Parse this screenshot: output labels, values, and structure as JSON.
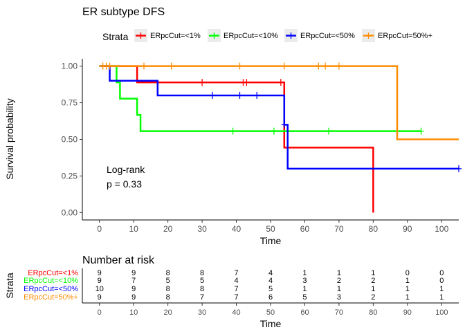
{
  "chart_data": [
    {
      "type": "line",
      "title": "ER subtype DFS",
      "xlabel": "Time",
      "ylabel": "Survival probability",
      "xlim": [
        -5,
        105
      ],
      "ylim": [
        -0.05,
        1.05
      ],
      "x_ticks": [
        0,
        10,
        20,
        30,
        40,
        50,
        60,
        70,
        80,
        90,
        100
      ],
      "y_ticks": [
        0.0,
        0.25,
        0.5,
        0.75,
        1.0
      ],
      "y_tick_labels": [
        "0.00",
        "0.25",
        "0.50",
        "0.75",
        "1.00"
      ],
      "grid": false,
      "legend_title": "Strata",
      "legend_position": "top",
      "annotation": {
        "line1": "Log-rank",
        "line2": "p = 0.33"
      },
      "series": [
        {
          "name": "ERpcCut=<1%",
          "color": "#FF0000",
          "steps": [
            [
              0,
              1.0
            ],
            [
              11,
              0.889
            ],
            [
              54,
              0.444
            ],
            [
              80,
              0.0
            ]
          ],
          "end_x": 80,
          "censors": [
            [
              30,
              0.889
            ],
            [
              42,
              0.889
            ],
            [
              43,
              0.889
            ],
            [
              53,
              0.889
            ]
          ]
        },
        {
          "name": "ERpcCut=<10%",
          "color": "#00FF00",
          "steps": [
            [
              0,
              1.0
            ],
            [
              5,
              0.889
            ],
            [
              6,
              0.778
            ],
            [
              11,
              0.667
            ],
            [
              12,
              0.556
            ]
          ],
          "end_x": 94,
          "censors": [
            [
              39,
              0.556
            ],
            [
              51,
              0.556
            ],
            [
              67,
              0.556
            ],
            [
              87,
              0.556
            ],
            [
              94,
              0.556
            ]
          ]
        },
        {
          "name": "ERpcCut=<50%",
          "color": "#0000FF",
          "steps": [
            [
              0,
              1.0
            ],
            [
              3,
              0.9
            ],
            [
              17,
              0.8
            ],
            [
              54,
              0.6
            ],
            [
              55,
              0.3
            ]
          ],
          "end_x": 105,
          "censors": [
            [
              33,
              0.8
            ],
            [
              41,
              0.8
            ],
            [
              46,
              0.8
            ],
            [
              54,
              0.6
            ],
            [
              105,
              0.3
            ]
          ]
        },
        {
          "name": "ERpcCut=50%+",
          "color": "#FF8C00",
          "steps": [
            [
              0,
              1.0
            ],
            [
              87,
              0.5
            ]
          ],
          "end_x": 105,
          "censors": [
            [
              1,
              1.0
            ],
            [
              2,
              1.0
            ],
            [
              3,
              1.0
            ],
            [
              13,
              1.0
            ],
            [
              21,
              1.0
            ],
            [
              41,
              1.0
            ],
            [
              54,
              1.0
            ],
            [
              64,
              1.0
            ],
            [
              66,
              1.0
            ],
            [
              70,
              1.0
            ]
          ]
        }
      ]
    },
    {
      "type": "table",
      "title": "Number at risk",
      "xlabel": "Time",
      "ylabel": "Strata",
      "x_ticks": [
        0,
        10,
        20,
        30,
        40,
        50,
        60,
        70,
        80,
        90,
        100
      ],
      "rows": [
        {
          "name": "ERpcCut=<1%",
          "color": "#FF0000",
          "values": [
            9,
            9,
            8,
            8,
            7,
            4,
            1,
            1,
            1,
            0,
            0
          ]
        },
        {
          "name": "ERpcCut=<10%",
          "color": "#00FF00",
          "values": [
            9,
            7,
            5,
            5,
            4,
            4,
            3,
            2,
            2,
            1,
            0
          ]
        },
        {
          "name": "ERpcCut=<50%",
          "color": "#0000FF",
          "values": [
            10,
            9,
            8,
            8,
            7,
            5,
            1,
            1,
            1,
            1,
            1
          ]
        },
        {
          "name": "ERpcCut=50%+",
          "color": "#FF8C00",
          "values": [
            9,
            9,
            8,
            7,
            7,
            6,
            5,
            3,
            2,
            1,
            1
          ]
        }
      ]
    }
  ]
}
